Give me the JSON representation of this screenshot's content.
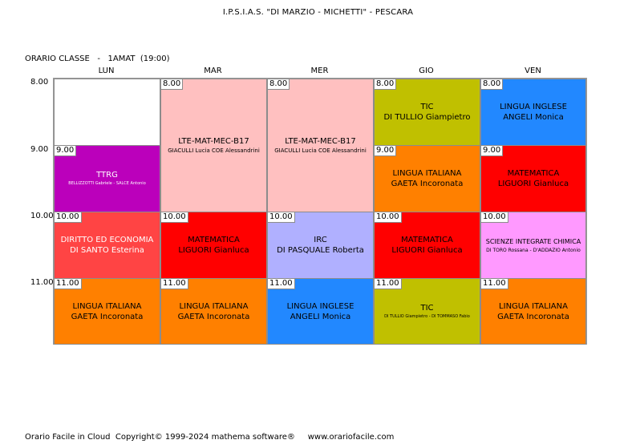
{
  "header": {
    "school": "I.P.S.I.A.S. \"DI MARZIO - MICHETTI\" - PESCARA",
    "class_label": "ORARIO CLASSE   -   1AMAT  (19:00)"
  },
  "days": [
    "LUN",
    "MAR",
    "MER",
    "GIO",
    "VEN"
  ],
  "times": [
    "8.00",
    "9.00",
    "10.00",
    "11.00"
  ],
  "lessons": [
    {
      "start": "9.00",
      "subject": "TTRG",
      "teacher": "BELLIZZOTTI Gabriele - SALCE Antonio",
      "color": "#bb00bb"
    },
    {
      "start": "10.00",
      "subject": "DIRITTO ED ECONOMIA",
      "teacher": "DI SANTO Esterina",
      "color": "#ff4444"
    },
    {
      "start": "11.00",
      "subject": "LINGUA ITALIANA",
      "teacher": "GAETA Incoronata",
      "color": "#ff8000"
    },
    {
      "start": "8.00",
      "subject": "LTE-MAT-MEC-B17",
      "teacher": "GIACULLI Lucia COE Alessandrini",
      "color": "#ffc0c0"
    },
    {
      "start": "10.00",
      "subject": "MATEMATICA",
      "teacher": "LIGUORI Gianluca",
      "color": "#ff0000"
    },
    {
      "start": "11.00",
      "subject": "LINGUA ITALIANA",
      "teacher": "GAETA Incoronata",
      "color": "#ff8000"
    },
    {
      "start": "8.00",
      "subject": "LTE-MAT-MEC-B17",
      "teacher": "GIACULLI Lucia COE Alessandrini",
      "color": "#ffc0c0"
    },
    {
      "start": "10.00",
      "subject": "IRC",
      "teacher": "DI PASQUALE Roberta",
      "color": "#b0b0ff"
    },
    {
      "start": "11.00",
      "subject": "LINGUA INGLESE",
      "teacher": "ANGELI Monica",
      "color": "#2288ff"
    },
    {
      "start": "8.00",
      "subject": "TIC",
      "teacher": "DI TULLIO Giampietro",
      "color": "#c0c000"
    },
    {
      "start": "9.00",
      "subject": "LINGUA ITALIANA",
      "teacher": "GAETA Incoronata",
      "color": "#ff8000"
    },
    {
      "start": "10.00",
      "subject": "MATEMATICA",
      "teacher": "LIGUORI Gianluca",
      "color": "#ff0000"
    },
    {
      "start": "11.00",
      "subject": "TIC",
      "teacher": "DI TULLIO Giampietro - DI TOMMASO Fabio",
      "color": "#c0c000"
    },
    {
      "start": "8.00",
      "subject": "LINGUA INGLESE",
      "teacher": "ANGELI Monica",
      "color": "#2288ff"
    },
    {
      "start": "9.00",
      "subject": "MATEMATICA",
      "teacher": "LIGUORI Gianluca",
      "color": "#ff0000"
    },
    {
      "start": "10.00",
      "subject": "SCIENZE INTEGRATE CHIMICA",
      "teacher": "DI TORO Rossana - D'ADDAZIO Antonio",
      "color": "#ff99ff"
    },
    {
      "start": "11.00",
      "subject": "LINGUA ITALIANA",
      "teacher": "GAETA Incoronata",
      "color": "#ff8000"
    }
  ],
  "footer": "Orario Facile in Cloud  Copyright© 1999-2024 mathema software®     www.orariofacile.com"
}
